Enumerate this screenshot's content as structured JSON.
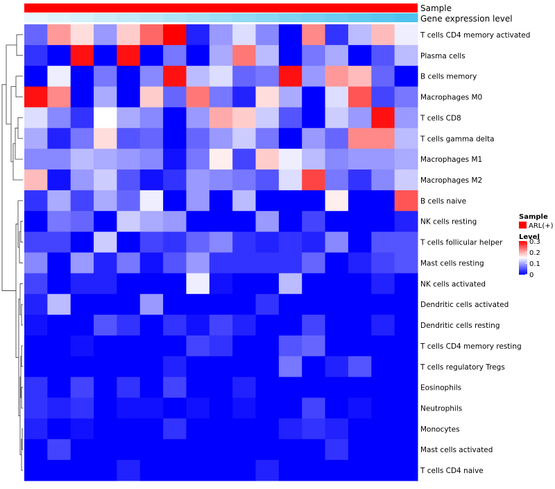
{
  "chart_data": {
    "type": "heatmap",
    "annotation_tracks": [
      {
        "label": "Sample",
        "values": [
          "ARL(+)"
        ]
      },
      {
        "label": "Gene expression level",
        "gradient": [
          "#e8f7fd",
          "#4ec3ee"
        ]
      }
    ],
    "rows": [
      "T cells CD4 memory activated",
      "Plasma cells",
      "B cells memory",
      "Macrophages M0",
      "T cells CD8",
      "T cells gamma delta",
      "Macrophages M1",
      "Macrophages M2",
      "B cells naive",
      "NK cells resting",
      "T cells follicular helper",
      "Mast cells resting",
      "NK cells activated",
      "Dendritic cells activated",
      "Dendritic cells resting",
      "T cells CD4 memory resting",
      "T cells regulatory  Tregs",
      "Eosinophils",
      "Neutrophils",
      "Monocytes",
      "Mast cells activated",
      "T cells CD4 naive"
    ],
    "n_columns": 17,
    "values": [
      [
        0.06,
        0.21,
        0.17,
        0.09,
        0.18,
        0.24,
        0.3,
        0.02,
        0.09,
        0.13,
        0.08,
        0.0,
        0.22,
        0.03,
        0.11,
        0.19,
        0.14
      ],
      [
        0.03,
        0.0,
        0.29,
        0.0,
        0.29,
        0.0,
        0.07,
        0.0,
        0.1,
        0.23,
        0.11,
        0.0,
        0.07,
        0.1,
        0.0,
        0.05,
        0.11
      ],
      [
        0.0,
        0.14,
        0.0,
        0.07,
        0.0,
        0.08,
        0.29,
        0.11,
        0.13,
        0.06,
        0.07,
        0.29,
        0.09,
        0.21,
        0.19,
        0.06,
        0.0
      ],
      [
        0.29,
        0.22,
        0.0,
        0.1,
        0.0,
        0.18,
        0.06,
        0.23,
        0.07,
        0.02,
        0.17,
        0.1,
        0.0,
        0.13,
        0.25,
        0.04,
        0.07
      ],
      [
        0.13,
        0.08,
        0.03,
        0.15,
        0.1,
        0.08,
        0.0,
        0.09,
        0.2,
        0.18,
        0.12,
        0.05,
        0.0,
        0.12,
        0.09,
        0.29,
        0.09
      ],
      [
        0.1,
        0.02,
        0.07,
        0.17,
        0.05,
        0.06,
        0.0,
        0.06,
        0.09,
        0.12,
        0.07,
        0.0,
        0.09,
        0.06,
        0.22,
        0.22,
        0.11
      ],
      [
        0.08,
        0.08,
        0.11,
        0.1,
        0.09,
        0.08,
        0.01,
        0.07,
        0.16,
        0.04,
        0.18,
        0.14,
        0.11,
        0.08,
        0.09,
        0.09,
        0.1
      ],
      [
        0.19,
        0.01,
        0.09,
        0.12,
        0.05,
        0.01,
        0.03,
        0.09,
        0.08,
        0.07,
        0.05,
        0.13,
        0.26,
        0.07,
        0.03,
        0.08,
        0.12
      ],
      [
        0.03,
        0.1,
        0.04,
        0.1,
        0.06,
        0.14,
        0.0,
        0.09,
        0.0,
        0.11,
        0.0,
        0.0,
        0.0,
        0.16,
        0.0,
        0.0,
        0.25
      ],
      [
        0.0,
        0.07,
        0.06,
        0.0,
        0.12,
        0.1,
        0.09,
        0.0,
        0.0,
        0.0,
        0.09,
        0.0,
        0.04,
        0.0,
        0.0,
        0.0,
        0.02
      ],
      [
        0.04,
        0.04,
        0.0,
        0.12,
        0.0,
        0.04,
        0.03,
        0.06,
        0.08,
        0.03,
        0.02,
        0.03,
        0.02,
        0.08,
        0.0,
        0.05,
        0.05
      ],
      [
        0.08,
        0.0,
        0.09,
        0.02,
        0.07,
        0.01,
        0.05,
        0.09,
        0.03,
        0.03,
        0.03,
        0.03,
        0.06,
        0.0,
        0.02,
        0.04,
        0.05
      ],
      [
        0.04,
        0.0,
        0.02,
        0.02,
        0.0,
        0.0,
        0.0,
        0.14,
        0.01,
        0.0,
        0.0,
        0.11,
        0.0,
        0.0,
        0.0,
        0.02,
        0.0
      ],
      [
        0.02,
        0.11,
        0.0,
        0.0,
        0.0,
        0.09,
        0.0,
        0.0,
        0.0,
        0.0,
        0.03,
        0.0,
        0.0,
        0.0,
        0.0,
        0.0,
        0.0
      ],
      [
        0.01,
        0.0,
        0.0,
        0.05,
        0.03,
        0.0,
        0.03,
        0.01,
        0.04,
        0.02,
        0.0,
        0.0,
        0.04,
        0.0,
        0.0,
        0.02,
        0.0
      ],
      [
        0.0,
        0.0,
        0.01,
        0.0,
        0.0,
        0.0,
        0.0,
        0.04,
        0.03,
        0.0,
        0.0,
        0.05,
        0.06,
        0.0,
        0.0,
        0.0,
        0.0
      ],
      [
        0.0,
        0.0,
        0.0,
        0.0,
        0.0,
        0.0,
        0.02,
        0.0,
        0.0,
        0.0,
        0.0,
        0.07,
        0.0,
        0.02,
        0.05,
        0.0,
        0.0
      ],
      [
        0.03,
        0.0,
        0.04,
        0.0,
        0.03,
        0.0,
        0.04,
        0.0,
        0.0,
        0.02,
        0.0,
        0.0,
        0.0,
        0.0,
        0.0,
        0.0,
        0.0
      ],
      [
        0.03,
        0.02,
        0.03,
        0.0,
        0.01,
        0.01,
        0.0,
        0.01,
        0.0,
        0.01,
        0.0,
        0.0,
        0.04,
        0.0,
        0.01,
        0.0,
        0.0
      ],
      [
        0.02,
        0.0,
        0.01,
        0.0,
        0.0,
        0.0,
        0.03,
        0.0,
        0.0,
        0.0,
        0.0,
        0.02,
        0.03,
        0.02,
        0.0,
        0.0,
        0.0
      ],
      [
        0.0,
        0.04,
        0.0,
        0.0,
        0.0,
        0.0,
        0.0,
        0.0,
        0.0,
        0.0,
        0.0,
        0.0,
        0.0,
        0.03,
        0.0,
        0.0,
        0.0
      ],
      [
        0.0,
        0.0,
        0.0,
        0.0,
        0.02,
        0.0,
        0.0,
        0.0,
        0.0,
        0.0,
        0.02,
        0.0,
        0.0,
        0.0,
        0.0,
        0.0,
        0.0
      ]
    ],
    "color_scale": {
      "low": "#0000ff",
      "mid": "#ffffff",
      "high": "#ff0000",
      "min": 0,
      "mid_value": 0.15,
      "max": 0.3
    },
    "legend": {
      "sample_title": "Sample",
      "sample_entry": "ARL(+)",
      "sample_color": "#ff0000",
      "level_title": "Level",
      "ticks": [
        "0.3",
        "0.2",
        "0.1",
        "0"
      ],
      "tick_values": [
        0.3,
        0.2,
        0.1,
        0
      ]
    },
    "row_dendrogram": true
  }
}
